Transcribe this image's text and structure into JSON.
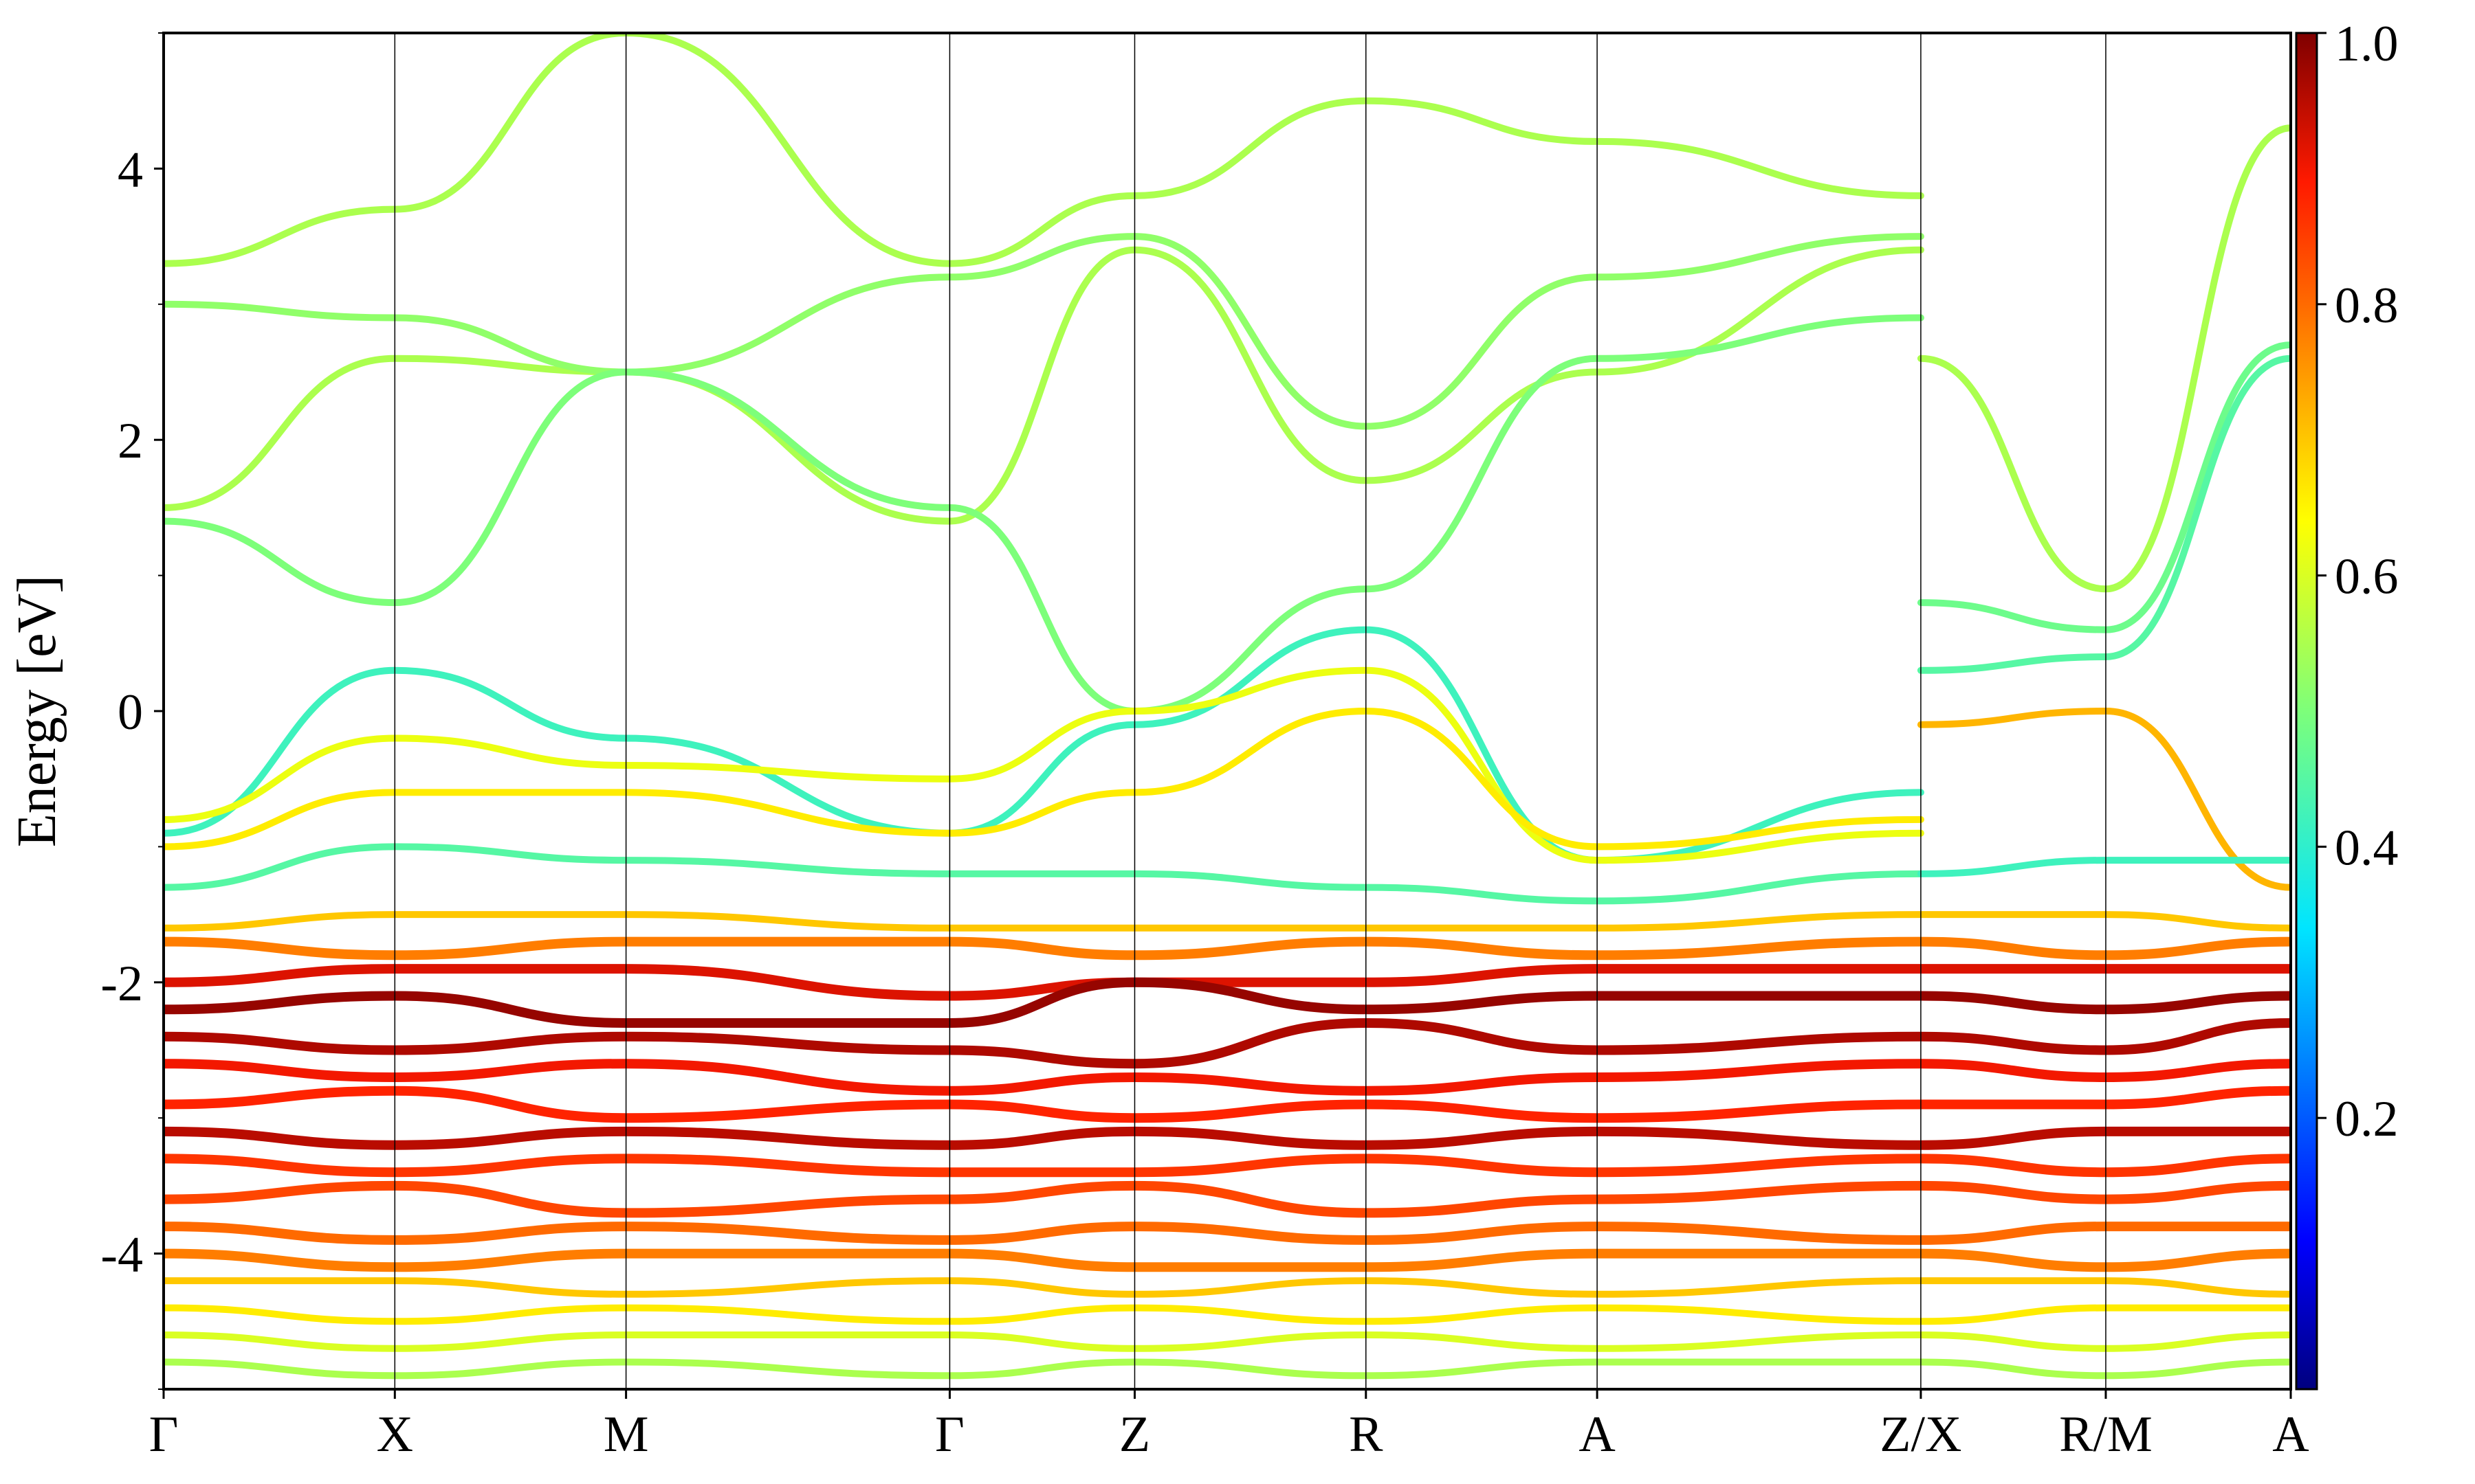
{
  "chart_data": {
    "type": "line",
    "title": "",
    "xlabel": "",
    "ylabel": "Energy [eV]",
    "ylim": [
      -5,
      5
    ],
    "yticks": [
      -4,
      -2,
      0,
      2,
      4
    ],
    "ytick_labels": [
      "-4",
      "-2",
      "0",
      "2",
      "4"
    ],
    "high_symmetry_points": [
      {
        "label": "Γ",
        "k": 0.0
      },
      {
        "label": "X",
        "k": 1.0
      },
      {
        "label": "M",
        "k": 2.0
      },
      {
        "label": "Γ",
        "k": 3.4
      },
      {
        "label": "Z",
        "k": 4.2
      },
      {
        "label": "R",
        "k": 5.2
      },
      {
        "label": "A",
        "k": 6.2
      },
      {
        "label": "Z/X",
        "k": 7.6
      },
      {
        "label": "R/M",
        "k": 8.4
      },
      {
        "label": "A",
        "k": 9.2
      }
    ],
    "xlim": [
      0,
      9.2
    ],
    "grid": false,
    "colorbar": {
      "colormap": "jet",
      "range": [
        0.0,
        1.0
      ],
      "ticks": [
        0.2,
        0.4,
        0.6,
        0.8,
        1.0
      ],
      "tick_labels": [
        "0.2",
        "0.4",
        "0.6",
        "0.8",
        "1.0"
      ]
    },
    "series": [
      {
        "w": 0.55,
        "x": [
          0,
          1,
          2,
          3.4,
          4.2,
          5.2,
          6.2,
          7.6
        ],
        "y": [
          1.5,
          2.6,
          2.5,
          1.4,
          3.4,
          1.7,
          2.5,
          3.4
        ]
      },
      {
        "w": 0.55,
        "x": [
          0,
          1,
          2,
          3.4,
          4.2,
          5.2,
          6.2,
          7.6
        ],
        "y": [
          3.3,
          3.7,
          5.0,
          3.3,
          3.8,
          4.5,
          4.2,
          3.8
        ]
      },
      {
        "w": 0.52,
        "x": [
          0,
          1,
          2,
          3.4,
          4.2,
          5.2,
          6.2,
          7.6
        ],
        "y": [
          3.0,
          2.9,
          2.5,
          3.2,
          3.5,
          2.1,
          3.2,
          3.5
        ]
      },
      {
        "w": 0.5,
        "x": [
          0,
          1,
          2,
          3.4,
          4.2,
          5.2,
          6.2,
          7.6
        ],
        "y": [
          1.4,
          0.8,
          2.5,
          1.5,
          0.0,
          0.9,
          2.6,
          2.9
        ]
      },
      {
        "w": 0.42,
        "x": [
          0,
          1,
          2,
          3.4,
          4.2,
          5.2,
          6.2,
          7.6
        ],
        "y": [
          -0.9,
          0.3,
          -0.2,
          -0.9,
          -0.1,
          0.6,
          -1.1,
          -0.6
        ]
      },
      {
        "w": 0.62,
        "x": [
          0,
          1,
          2,
          3.4,
          4.2,
          5.2,
          6.2,
          7.6
        ],
        "y": [
          -0.8,
          -0.2,
          -0.4,
          -0.5,
          0.0,
          0.3,
          -1.1,
          -0.9
        ]
      },
      {
        "w": 0.66,
        "x": [
          0,
          1,
          2,
          3.4,
          4.2,
          5.2,
          6.2,
          7.6
        ],
        "y": [
          -1.0,
          -0.6,
          -0.6,
          -0.9,
          -0.6,
          0.0,
          -1.0,
          -0.8
        ]
      },
      {
        "w": 0.45,
        "x": [
          0,
          1,
          2,
          3.4,
          4.2,
          5.2,
          6.2,
          7.6
        ],
        "y": [
          -1.3,
          -1.0,
          -1.1,
          -1.2,
          -1.2,
          -1.3,
          -1.4,
          -1.2
        ]
      },
      {
        "w": 0.48,
        "x": [
          7.6,
          8.4,
          9.2
        ],
        "y": [
          0.8,
          0.6,
          2.7
        ]
      },
      {
        "w": 0.45,
        "x": [
          7.6,
          8.4,
          9.2
        ],
        "y": [
          0.3,
          0.4,
          2.6
        ]
      },
      {
        "w": 0.55,
        "x": [
          7.6,
          8.4,
          9.2
        ],
        "y": [
          2.6,
          0.9,
          4.3
        ]
      },
      {
        "w": 0.72,
        "x": [
          7.6,
          8.4,
          9.2
        ],
        "y": [
          -0.1,
          0.0,
          -1.3
        ]
      },
      {
        "w": 0.42,
        "x": [
          7.6,
          8.4,
          9.2
        ],
        "y": [
          -1.2,
          -1.1,
          -1.1
        ]
      },
      {
        "w": 0.7,
        "x": [
          0,
          1,
          2,
          3.4,
          4.2,
          5.2,
          6.2,
          7.6,
          8.4,
          9.2
        ],
        "y": [
          -1.6,
          -1.5,
          -1.5,
          -1.6,
          -1.6,
          -1.6,
          -1.6,
          -1.5,
          -1.5,
          -1.6
        ]
      },
      {
        "w": 0.78,
        "x": [
          0,
          1,
          2,
          3.4,
          4.2,
          5.2,
          6.2,
          7.6,
          8.4,
          9.2
        ],
        "y": [
          -1.7,
          -1.8,
          -1.7,
          -1.7,
          -1.8,
          -1.7,
          -1.8,
          -1.7,
          -1.8,
          -1.7
        ]
      },
      {
        "w": 0.92,
        "x": [
          0,
          1,
          2,
          3.4,
          4.2,
          5.2,
          6.2,
          7.6,
          8.4,
          9.2
        ],
        "y": [
          -2.0,
          -1.9,
          -1.9,
          -2.1,
          -2.0,
          -2.0,
          -1.9,
          -1.9,
          -1.9,
          -1.9
        ]
      },
      {
        "w": 0.98,
        "x": [
          0,
          1,
          2,
          3.4,
          4.2,
          5.2,
          6.2,
          7.6,
          8.4,
          9.2
        ],
        "y": [
          -2.2,
          -2.1,
          -2.3,
          -2.3,
          -2.0,
          -2.2,
          -2.1,
          -2.1,
          -2.2,
          -2.1
        ]
      },
      {
        "w": 0.96,
        "x": [
          0,
          1,
          2,
          3.4,
          4.2,
          5.2,
          6.2,
          7.6,
          8.4,
          9.2
        ],
        "y": [
          -2.4,
          -2.5,
          -2.4,
          -2.5,
          -2.6,
          -2.3,
          -2.5,
          -2.4,
          -2.5,
          -2.3
        ]
      },
      {
        "w": 0.9,
        "x": [
          0,
          1,
          2,
          3.4,
          4.2,
          5.2,
          6.2,
          7.6,
          8.4,
          9.2
        ],
        "y": [
          -2.6,
          -2.7,
          -2.6,
          -2.8,
          -2.7,
          -2.8,
          -2.7,
          -2.6,
          -2.7,
          -2.6
        ]
      },
      {
        "w": 0.88,
        "x": [
          0,
          1,
          2,
          3.4,
          4.2,
          5.2,
          6.2,
          7.6,
          8.4,
          9.2
        ],
        "y": [
          -2.9,
          -2.8,
          -3.0,
          -2.9,
          -3.0,
          -2.9,
          -3.0,
          -2.9,
          -2.9,
          -2.8
        ]
      },
      {
        "w": 0.95,
        "x": [
          0,
          1,
          2,
          3.4,
          4.2,
          5.2,
          6.2,
          7.6,
          8.4,
          9.2
        ],
        "y": [
          -3.1,
          -3.2,
          -3.1,
          -3.2,
          -3.1,
          -3.2,
          -3.1,
          -3.2,
          -3.1,
          -3.1
        ]
      },
      {
        "w": 0.86,
        "x": [
          0,
          1,
          2,
          3.4,
          4.2,
          5.2,
          6.2,
          7.6,
          8.4,
          9.2
        ],
        "y": [
          -3.3,
          -3.4,
          -3.3,
          -3.4,
          -3.4,
          -3.3,
          -3.4,
          -3.3,
          -3.4,
          -3.3
        ]
      },
      {
        "w": 0.84,
        "x": [
          0,
          1,
          2,
          3.4,
          4.2,
          5.2,
          6.2,
          7.6,
          8.4,
          9.2
        ],
        "y": [
          -3.6,
          -3.5,
          -3.7,
          -3.6,
          -3.5,
          -3.7,
          -3.6,
          -3.5,
          -3.6,
          -3.5
        ]
      },
      {
        "w": 0.8,
        "x": [
          0,
          1,
          2,
          3.4,
          4.2,
          5.2,
          6.2,
          7.6,
          8.4,
          9.2
        ],
        "y": [
          -3.8,
          -3.9,
          -3.8,
          -3.9,
          -3.8,
          -3.9,
          -3.8,
          -3.9,
          -3.8,
          -3.8
        ]
      },
      {
        "w": 0.78,
        "x": [
          0,
          1,
          2,
          3.4,
          4.2,
          5.2,
          6.2,
          7.6,
          8.4,
          9.2
        ],
        "y": [
          -4.0,
          -4.1,
          -4.0,
          -4.0,
          -4.1,
          -4.1,
          -4.0,
          -4.0,
          -4.1,
          -4.0
        ]
      },
      {
        "w": 0.7,
        "x": [
          0,
          1,
          2,
          3.4,
          4.2,
          5.2,
          6.2,
          7.6,
          8.4,
          9.2
        ],
        "y": [
          -4.2,
          -4.2,
          -4.3,
          -4.2,
          -4.3,
          -4.2,
          -4.3,
          -4.2,
          -4.2,
          -4.3
        ]
      },
      {
        "w": 0.66,
        "x": [
          0,
          1,
          2,
          3.4,
          4.2,
          5.2,
          6.2,
          7.6,
          8.4,
          9.2
        ],
        "y": [
          -4.4,
          -4.5,
          -4.4,
          -4.5,
          -4.4,
          -4.5,
          -4.4,
          -4.5,
          -4.4,
          -4.4
        ]
      },
      {
        "w": 0.6,
        "x": [
          0,
          1,
          2,
          3.4,
          4.2,
          5.2,
          6.2,
          7.6,
          8.4,
          9.2
        ],
        "y": [
          -4.6,
          -4.7,
          -4.6,
          -4.6,
          -4.7,
          -4.6,
          -4.7,
          -4.6,
          -4.7,
          -4.6
        ]
      },
      {
        "w": 0.55,
        "x": [
          0,
          1,
          2,
          3.4,
          4.2,
          5.2,
          6.2,
          7.6,
          8.4,
          9.2
        ],
        "y": [
          -4.8,
          -4.9,
          -4.8,
          -4.9,
          -4.8,
          -4.9,
          -4.8,
          -4.8,
          -4.9,
          -4.8
        ]
      }
    ]
  }
}
